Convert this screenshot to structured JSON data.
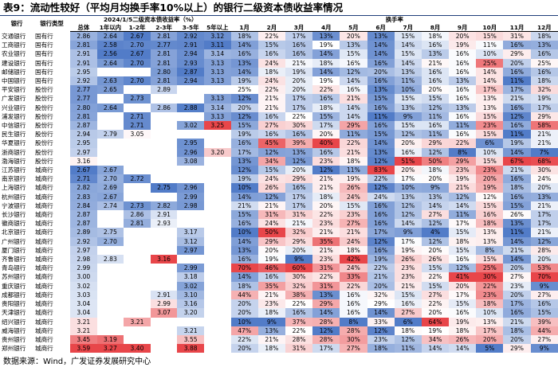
{
  "title": "表9：流动性较好（平均月均换手率10%以上）的银行二级资本债收益率情况",
  "header": {
    "bank": "银行",
    "type": "银行类型",
    "yield_group": "2024/1/5二级资本债收益率（%）",
    "yield_cols": [
      "总体",
      "1年以内",
      "1-2年",
      "2-3年",
      "3-5年",
      "5年以上"
    ],
    "turnover_group": "换手率",
    "turnover_cols": [
      "1月",
      "2月",
      "3月",
      "4月",
      "5月",
      "6月",
      "7月",
      "8月",
      "9月",
      "10月",
      "11月",
      "12月"
    ]
  },
  "rows": [
    {
      "bank": "交通银行",
      "type": "国有行",
      "yields": [
        "2.86",
        "2.64",
        "2.67",
        "2.81",
        "2.92",
        "3.12"
      ],
      "turnover": [
        "18%",
        "22%",
        "17%",
        "13%",
        "20%",
        "13%",
        "15%",
        "18%",
        "20%",
        "15%",
        "31%",
        "18%"
      ]
    },
    {
      "bank": "工商银行",
      "type": "国有行",
      "yields": [
        "2.81",
        "2.58",
        "2.70",
        "2.77",
        "2.91",
        "3.11"
      ],
      "turnover": [
        "14%",
        "15%",
        "16%",
        "19%",
        "13%",
        "14%",
        "14%",
        "16%",
        "19%",
        "11%",
        "16%",
        "13%"
      ]
    },
    {
      "bank": "农业银行",
      "type": "国有行",
      "yields": [
        "2.91",
        "2.56",
        "2.67",
        "2.81",
        "2.94",
        "3.14"
      ],
      "turnover": [
        "16%",
        "16%",
        "16%",
        "14%",
        "15%",
        "14%",
        "15%",
        "13%",
        "16%",
        "10%",
        "29%",
        "16%"
      ]
    },
    {
      "bank": "建设银行",
      "type": "国有行",
      "yields": [
        "2.91",
        "2.64",
        "2.70",
        "2.81",
        "2.93",
        "3.13"
      ],
      "turnover": [
        "13%",
        "24%",
        "21%",
        "18%",
        "16%",
        "16%",
        "14%",
        "21%",
        "16%",
        "25%",
        "20%",
        "25%"
      ]
    },
    {
      "bank": "邮储银行",
      "type": "国有行",
      "yields": [
        "2.95",
        null,
        null,
        "2.80",
        "2.87",
        "3.13"
      ],
      "turnover": [
        "14%",
        "18%",
        "19%",
        "14%",
        "12%",
        "20%",
        "13%",
        "16%",
        "16%",
        "14%",
        "16%",
        "16%"
      ]
    },
    {
      "bank": "中国银行",
      "type": "国有行",
      "yields": [
        "2.92",
        "2.63",
        "2.70",
        "2.81",
        "2.94",
        "3.13"
      ],
      "turnover": [
        "19%",
        "24%",
        "20%",
        "19%",
        "14%",
        "16%",
        "11%",
        "16%",
        "13%",
        "14%",
        "11%",
        "18%"
      ]
    },
    {
      "bank": "平安银行",
      "type": "股份行",
      "yields": [
        "2.77",
        "2.65",
        null,
        "2.89",
        null,
        null
      ],
      "turnover": [
        "25%",
        "22%",
        "20%",
        "22%",
        "16%",
        "13%",
        "10%",
        "20%",
        "16%",
        "17%",
        "17%",
        "32%"
      ]
    },
    {
      "bank": "广发银行",
      "type": "股份行",
      "yields": [
        "2.77",
        null,
        "2.73",
        null,
        null,
        "3.13"
      ],
      "turnover": [
        "12%",
        "21%",
        "17%",
        "16%",
        "21%",
        "15%",
        "15%",
        "15%",
        "16%",
        "13%",
        "21%",
        "19%"
      ]
    },
    {
      "bank": "兴业银行",
      "type": "股份行",
      "yields": [
        "2.80",
        "2.64",
        null,
        "2.86",
        "2.88",
        "3.14"
      ],
      "turnover": [
        "20%",
        "21%",
        "17%",
        "18%",
        "14%",
        "16%",
        "13%",
        "12%",
        "13%",
        "13%",
        "16%",
        "17%"
      ]
    },
    {
      "bank": "浦发银行",
      "type": "股份行",
      "yields": [
        "2.81",
        null,
        "2.71",
        null,
        null,
        "3.13"
      ],
      "turnover": [
        "12%",
        "16%",
        "22%",
        "15%",
        "14%",
        "11%",
        "9%",
        "11%",
        "16%",
        "15%",
        "12%",
        "29%"
      ]
    },
    {
      "bank": "中信银行",
      "type": "股份行",
      "yields": [
        "2.87",
        null,
        "2.71",
        null,
        "3.02",
        "3.25"
      ],
      "turnover": [
        "15%",
        "27%",
        "30%",
        "17%",
        "29%",
        "16%",
        "15%",
        "16%",
        "11%",
        "23%",
        "16%",
        "58%"
      ]
    },
    {
      "bank": "民生银行",
      "type": "股份行",
      "yields": [
        "2.94",
        "2.79",
        "3.05",
        null,
        null,
        null
      ],
      "turnover": [
        "19%",
        "16%",
        "16%",
        "20%",
        "11%",
        "15%",
        "12%",
        "11%",
        "16%",
        "15%",
        "11%",
        "21%"
      ]
    },
    {
      "bank": "华夏银行",
      "type": "股份行",
      "yields": [
        "2.95",
        null,
        null,
        null,
        "2.95",
        null
      ],
      "turnover": [
        "16%",
        "45%",
        "39%",
        "40%",
        "22%",
        "14%",
        "20%",
        "29%",
        "22%",
        "6%",
        "19%",
        "21%"
      ]
    },
    {
      "bank": "浙商银行",
      "type": "股份行",
      "yields": [
        "2.97",
        null,
        null,
        null,
        "2.96",
        "3.20"
      ],
      "turnover": [
        "17%",
        "12%",
        "13%",
        "16%",
        "21%",
        "13%",
        "16%",
        "12%",
        "8%",
        "10%",
        "14%",
        "7%"
      ]
    },
    {
      "bank": "渤海银行",
      "type": "股份行",
      "yields": [
        "3.16",
        null,
        null,
        null,
        "3.08",
        null
      ],
      "turnover": [
        "13%",
        "34%",
        "12%",
        "23%",
        "18%",
        "12%",
        "51%",
        "50%",
        "29%",
        "15%",
        "67%",
        "68%"
      ]
    },
    {
      "bank": "江苏银行",
      "type": "城商行",
      "yields": [
        "2.67",
        "2.67",
        null,
        null,
        null,
        null
      ],
      "turnover": [
        "12%",
        "15%",
        "20%",
        "12%",
        "11%",
        "83%",
        "20%",
        "18%",
        "23%",
        "23%",
        "21%",
        "30%"
      ]
    },
    {
      "bank": "南京银行",
      "type": "城商行",
      "yields": [
        "2.71",
        "2.70",
        "2.72",
        null,
        null,
        null
      ],
      "turnover": [
        "19%",
        "24%",
        "29%",
        "21%",
        "19%",
        "22%",
        "17%",
        "20%",
        "19%",
        "20%",
        "16%",
        "24%"
      ]
    },
    {
      "bank": "上海银行",
      "type": "城商行",
      "yields": [
        "2.82",
        "2.69",
        null,
        "2.75",
        "2.96",
        null
      ],
      "turnover": [
        "10%",
        "26%",
        "16%",
        "21%",
        "26%",
        "12%",
        "10%",
        "9%",
        "21%",
        "19%",
        "18%",
        "20%"
      ]
    },
    {
      "bank": "杭州银行",
      "type": "城商行",
      "yields": [
        "2.83",
        "2.67",
        null,
        null,
        "2.99",
        null
      ],
      "turnover": [
        "14%",
        "12%",
        "17%",
        "18%",
        "24%",
        "24%",
        "13%",
        "13%",
        "12%",
        "12%",
        "16%",
        "13%"
      ]
    },
    {
      "bank": "宁波银行",
      "type": "城商行",
      "yields": [
        "2.84",
        "2.74",
        "2.73",
        "2.82",
        "2.98",
        null
      ],
      "turnover": [
        "21%",
        "21%",
        "17%",
        "20%",
        "15%",
        "16%",
        "12%",
        "14%",
        "14%",
        "15%",
        "15%",
        "21%"
      ]
    },
    {
      "bank": "长沙银行",
      "type": "城商行",
      "yields": [
        "2.87",
        null,
        "2.86",
        "2.91",
        null,
        null
      ],
      "turnover": [
        "15%",
        "31%",
        "31%",
        "22%",
        "23%",
        "16%",
        "12%",
        "27%",
        "11%",
        "16%",
        "26%",
        "17%"
      ]
    },
    {
      "bank": "徽商银行",
      "type": "城商行",
      "yields": [
        "2.87",
        null,
        "2.81",
        "2.93",
        null,
        null
      ],
      "turnover": [
        "16%",
        "24%",
        "21%",
        "23%",
        "27%",
        "16%",
        "14%",
        "12%",
        "17%",
        "18%",
        "13%",
        "17%"
      ]
    },
    {
      "bank": "北京银行",
      "type": "城商行",
      "yields": [
        "2.89",
        "2.75",
        null,
        null,
        "3.17",
        null
      ],
      "turnover": [
        "10%",
        "50%",
        "32%",
        "21%",
        "21%",
        "17%",
        "9%",
        "4%",
        "15%",
        "13%",
        "11%",
        "21%"
      ]
    },
    {
      "bank": "广州银行",
      "type": "城商行",
      "yields": [
        "2.92",
        "2.70",
        null,
        null,
        "3.12",
        null
      ],
      "turnover": [
        "14%",
        "29%",
        "29%",
        "35%",
        "24%",
        "12%",
        "17%",
        "12%",
        "18%",
        "13%",
        "14%",
        "12%"
      ]
    },
    {
      "bank": "厦门银行",
      "type": "城商行",
      "yields": [
        "2.97",
        null,
        null,
        null,
        "2.97",
        null
      ],
      "turnover": [
        "13%",
        "20%",
        "20%",
        "21%",
        "18%",
        "16%",
        "19%",
        "20%",
        "15%",
        "8%",
        "21%",
        "28%"
      ]
    },
    {
      "bank": "齐鲁银行",
      "type": "城商行",
      "yields": [
        "2.98",
        "2.83",
        null,
        "3.16",
        null,
        null
      ],
      "turnover": [
        "16%",
        "19%",
        "9%",
        "23%",
        "42%",
        "19%",
        "26%",
        "26%",
        "16%",
        "15%",
        "14%",
        "20%"
      ]
    },
    {
      "bank": "青岛银行",
      "type": "城商行",
      "yields": [
        "2.99",
        null,
        null,
        null,
        "2.99",
        null
      ],
      "turnover": [
        "70%",
        "46%",
        "60%",
        "31%",
        "24%",
        "22%",
        "23%",
        "15%",
        "12%",
        "25%",
        "20%",
        "53%"
      ]
    },
    {
      "bank": "苏州银行",
      "type": "城商行",
      "yields": [
        "3.00",
        null,
        null,
        null,
        "3.18",
        null
      ],
      "turnover": [
        "14%",
        "16%",
        "30%",
        "22%",
        "33%",
        "21%",
        "23%",
        "22%",
        "41%",
        "30%",
        "27%",
        "70%"
      ]
    },
    {
      "bank": "重庆银行",
      "type": "城商行",
      "yields": [
        "3.02",
        null,
        null,
        null,
        "3.02",
        null
      ],
      "turnover": [
        "18%",
        "35%",
        "32%",
        "31%",
        "22%",
        "20%",
        "21%",
        "15%",
        "20%",
        "22%",
        "23%",
        "9%"
      ]
    },
    {
      "bank": "成都银行",
      "type": "城商行",
      "yields": [
        "3.03",
        null,
        null,
        "2.91",
        "3.10",
        null
      ],
      "turnover": [
        "44%",
        "21%",
        "38%",
        "13%",
        "16%",
        "32%",
        "15%",
        "27%",
        "17%",
        "23%",
        "20%",
        "27%"
      ]
    },
    {
      "bank": "贵阳银行",
      "type": "城商行",
      "yields": [
        "3.04",
        null,
        null,
        "2.99",
        "3.16",
        null
      ],
      "turnover": [
        "20%",
        "23%",
        "22%",
        "29%",
        "16%",
        "29%",
        "16%",
        "22%",
        "15%",
        "18%",
        "17%",
        "16%"
      ]
    },
    {
      "bank": "天津银行",
      "type": "城商行",
      "yields": [
        "3.04",
        null,
        null,
        "3.07",
        "3.20",
        null
      ],
      "turnover": [
        "20%",
        "18%",
        "16%",
        "14%",
        "16%",
        "14%",
        "27%",
        "20%",
        "16%",
        "10%",
        "16%",
        "15%"
      ]
    },
    {
      "bank": "绍兴银行",
      "type": "城商行",
      "yields": [
        "3.21",
        null,
        "3.21",
        null,
        null,
        null
      ],
      "turnover": [
        "10%",
        "9%",
        "37%",
        "28%",
        "8%",
        "33%",
        "6%",
        "64%",
        "19%",
        "13%",
        "21%",
        "39%"
      ]
    },
    {
      "bank": "威海银行",
      "type": "城商行",
      "yields": [
        "3.21",
        null,
        null,
        null,
        "3.21",
        null
      ],
      "turnover": [
        "47%",
        "13%",
        "22%",
        "12%",
        "28%",
        "12%",
        "18%",
        "19%",
        "18%",
        "17%",
        "18%",
        "44%"
      ]
    },
    {
      "bank": "贵州银行",
      "type": "城商行",
      "yields": [
        "3.45",
        "3.19",
        null,
        null,
        "3.55",
        null
      ],
      "turnover": [
        "22%",
        "21%",
        "28%",
        "28%",
        "30%",
        "23%",
        "12%",
        "34%",
        "26%",
        "20%",
        "20%",
        "27%"
      ]
    },
    {
      "bank": "郑州银行",
      "type": "城商行",
      "yields": [
        "3.59",
        "3.27",
        "3.40",
        null,
        "3.88",
        null
      ],
      "turnover": [
        "20%",
        "18%",
        "31%",
        "17%",
        "27%",
        "18%",
        "11%",
        "14%",
        "14%",
        "5%",
        "29%",
        "9%"
      ]
    }
  ],
  "source": "数据来源：Wind，广发证券发展研究中心"
}
